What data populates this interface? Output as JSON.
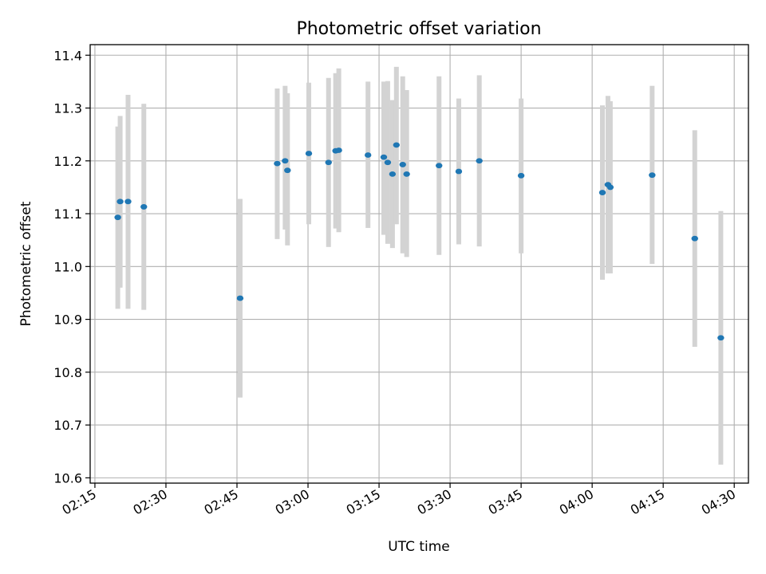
{
  "chart_data": {
    "type": "scatter",
    "title": "Photometric offset variation",
    "xlabel": "UTC time",
    "ylabel": "Photometric offset",
    "xlim": [
      "02:14",
      "04:33"
    ],
    "ylim": [
      10.59,
      11.42
    ],
    "x_ticks": [
      "02:15",
      "02:30",
      "02:45",
      "03:00",
      "03:15",
      "03:30",
      "03:45",
      "04:00",
      "04:15",
      "04:30"
    ],
    "y_ticks": [
      10.6,
      10.7,
      10.8,
      10.9,
      11.0,
      11.1,
      11.2,
      11.3,
      11.4
    ],
    "grid": true,
    "colors": {
      "point": "#1f77b4",
      "errorbar": "#d3d3d3",
      "grid": "#b0b0b0"
    },
    "series": [
      {
        "points": [
          {
            "x": "02:19:50",
            "y": 11.093,
            "lo": 10.92,
            "hi": 11.265
          },
          {
            "x": "02:20:20",
            "y": 11.123,
            "lo": 10.96,
            "hi": 11.285
          },
          {
            "x": "02:22:00",
            "y": 11.123,
            "lo": 10.92,
            "hi": 11.325
          },
          {
            "x": "02:25:20",
            "y": 11.113,
            "lo": 10.918,
            "hi": 11.308
          },
          {
            "x": "02:45:40",
            "y": 10.94,
            "lo": 10.752,
            "hi": 11.128
          },
          {
            "x": "02:53:30",
            "y": 11.195,
            "lo": 11.052,
            "hi": 11.337
          },
          {
            "x": "02:55:10",
            "y": 11.2,
            "lo": 11.07,
            "hi": 11.342
          },
          {
            "x": "02:55:40",
            "y": 11.182,
            "lo": 11.04,
            "hi": 11.328
          },
          {
            "x": "03:00:10",
            "y": 11.214,
            "lo": 11.08,
            "hi": 11.348
          },
          {
            "x": "03:04:20",
            "y": 11.197,
            "lo": 11.037,
            "hi": 11.357
          },
          {
            "x": "03:05:50",
            "y": 11.219,
            "lo": 11.072,
            "hi": 11.366
          },
          {
            "x": "03:06:30",
            "y": 11.22,
            "lo": 11.065,
            "hi": 11.375
          },
          {
            "x": "03:12:40",
            "y": 11.211,
            "lo": 11.073,
            "hi": 11.35
          },
          {
            "x": "03:16:00",
            "y": 11.207,
            "lo": 11.06,
            "hi": 11.35
          },
          {
            "x": "03:16:50",
            "y": 11.197,
            "lo": 11.043,
            "hi": 11.351
          },
          {
            "x": "03:17:50",
            "y": 11.175,
            "lo": 11.035,
            "hi": 11.315
          },
          {
            "x": "03:18:40",
            "y": 11.23,
            "lo": 11.08,
            "hi": 11.378
          },
          {
            "x": "03:20:00",
            "y": 11.193,
            "lo": 11.025,
            "hi": 11.36
          },
          {
            "x": "03:20:50",
            "y": 11.175,
            "lo": 11.018,
            "hi": 11.334
          },
          {
            "x": "03:27:40",
            "y": 11.191,
            "lo": 11.022,
            "hi": 11.36
          },
          {
            "x": "03:31:50",
            "y": 11.18,
            "lo": 11.042,
            "hi": 11.318
          },
          {
            "x": "03:36:10",
            "y": 11.2,
            "lo": 11.038,
            "hi": 11.362
          },
          {
            "x": "03:45:00",
            "y": 11.172,
            "lo": 11.025,
            "hi": 11.318
          },
          {
            "x": "04:02:10",
            "y": 11.14,
            "lo": 10.975,
            "hi": 11.305
          },
          {
            "x": "04:03:20",
            "y": 11.155,
            "lo": 10.987,
            "hi": 11.323
          },
          {
            "x": "04:03:50",
            "y": 11.15,
            "lo": 10.987,
            "hi": 11.313
          },
          {
            "x": "04:12:40",
            "y": 11.173,
            "lo": 11.005,
            "hi": 11.342
          },
          {
            "x": "04:21:40",
            "y": 11.053,
            "lo": 10.848,
            "hi": 11.258
          },
          {
            "x": "04:27:10",
            "y": 10.865,
            "lo": 10.625,
            "hi": 11.105
          }
        ]
      }
    ]
  }
}
